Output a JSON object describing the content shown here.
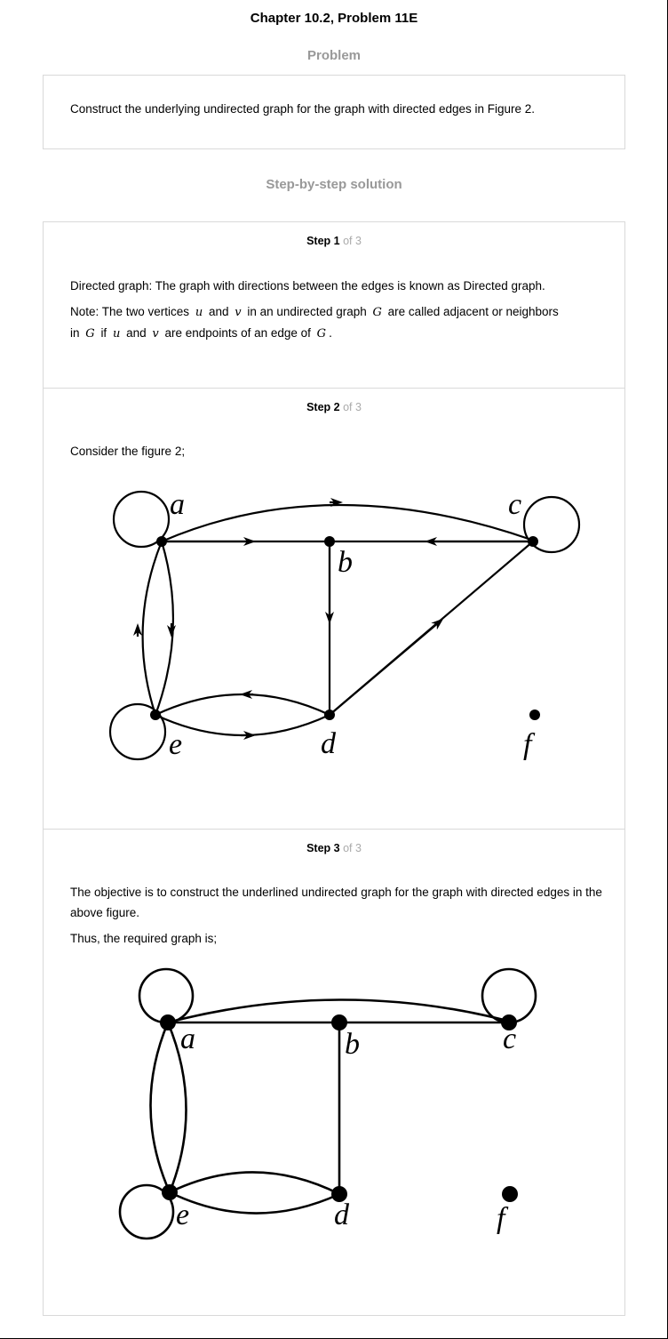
{
  "page": {
    "title": "Chapter 10.2, Problem 11E"
  },
  "problem": {
    "heading": "Problem",
    "text": "Construct the underlying undirected graph for the graph with directed edges in Figure 2."
  },
  "solution": {
    "heading": "Step-by-step solution",
    "steps": [
      {
        "step_label": "Step 1",
        "of_label": "of 3",
        "line1": "Directed graph: The graph with directions between the edges is known as Directed graph.",
        "note": {
          "t1": "Note: The two vertices",
          "u": "u",
          "t2": "and",
          "v": "v",
          "t3": "in an undirected graph",
          "G": "G",
          "t4": "are called adjacent or neighbors",
          "t5": "in",
          "t6": "if",
          "t7": "and",
          "t8": "are endpoints of an edge of",
          "t9": "."
        }
      },
      {
        "step_label": "Step 2",
        "of_label": "of 3",
        "text": "Consider the figure 2;",
        "figure_labels": {
          "a": "a",
          "b": "b",
          "c": "c",
          "d": "d",
          "e": "e",
          "f": "f"
        }
      },
      {
        "step_label": "Step 3",
        "of_label": "of 3",
        "text": "The objective is to construct the underlined undirected graph for the graph with directed edges in the above figure.",
        "text2": "Thus, the required graph is;",
        "figure_labels": {
          "a": "a",
          "b": "b",
          "c": "c",
          "d": "d",
          "e": "e",
          "f": "f"
        }
      }
    ]
  }
}
